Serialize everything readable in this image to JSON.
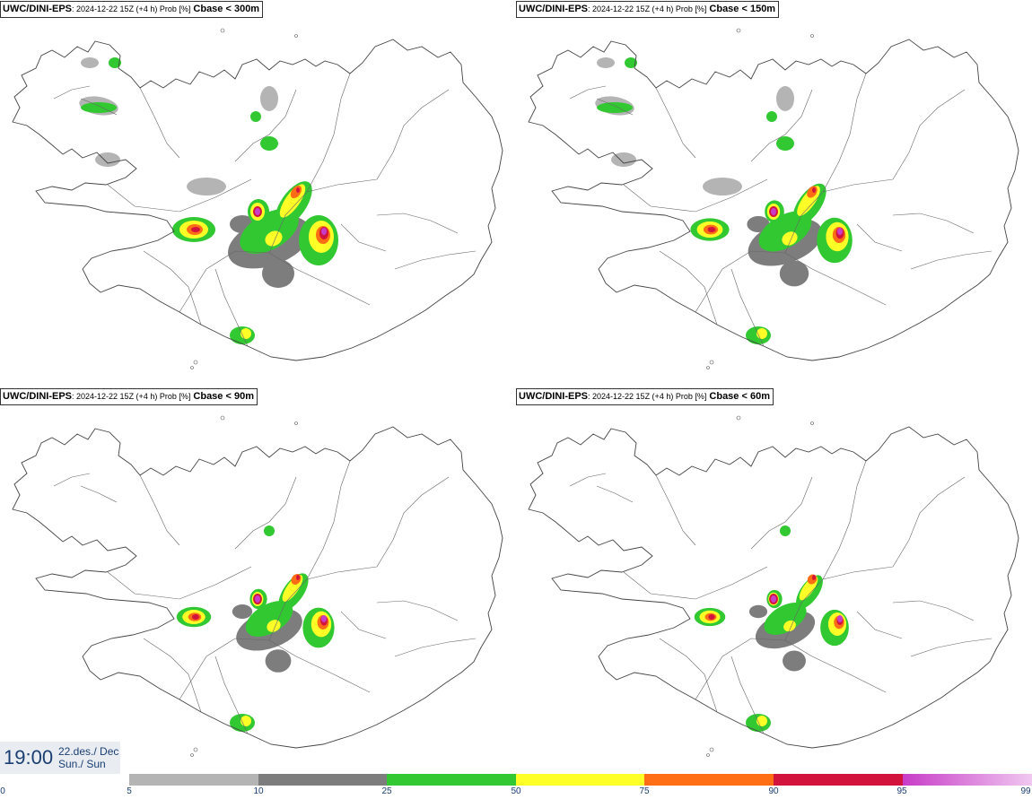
{
  "panels": [
    {
      "source": "UWC/DINI-EPS",
      "meta": "2024-12-22 15Z (+4 h) Prob [%]",
      "variable": "Cbase < 300m"
    },
    {
      "source": "UWC/DINI-EPS",
      "meta": "2024-12-22 15Z (+4 h) Prob [%]",
      "variable": "Cbase < 150m"
    },
    {
      "source": "UWC/DINI-EPS",
      "meta": "2024-12-22 15Z (+4 h) Prob [%]",
      "variable": "Cbase < 90m"
    },
    {
      "source": "UWC/DINI-EPS",
      "meta": "2024-12-22 15Z (+4 h) Prob [%]",
      "variable": "Cbase < 60m"
    }
  ],
  "valid_time": {
    "time": "19:00",
    "date_line1": "22.des./ Dec",
    "date_line2": "Sun./ Sun"
  },
  "colorbar": {
    "ticks": [
      "0",
      "5",
      "10",
      "25",
      "50",
      "75",
      "90",
      "95",
      "99"
    ],
    "colors": [
      "#b4b4b4",
      "#7d7d7d",
      "#32c832",
      "#ffff28",
      "#ff6e14",
      "#d2143c",
      "#c83cc8"
    ],
    "last_gradient_to": "#f0c8f0"
  },
  "legend_colors": {
    "gray_light": "#b4b4b4",
    "gray_dark": "#7d7d7d",
    "green": "#32c832",
    "yellow": "#ffff28",
    "orange": "#ff6e14",
    "red": "#d2143c",
    "magenta": "#c83cc8"
  }
}
